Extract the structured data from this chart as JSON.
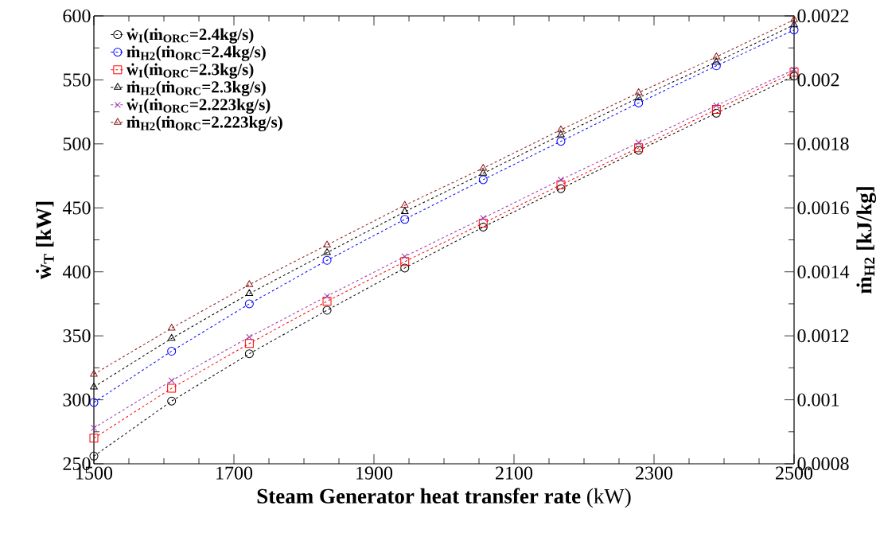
{
  "chart_data": {
    "type": "line",
    "xlabel": "**Steam Generator heat transfer rate** (kW)",
    "ylabel": "ẇ$_{T}$ [kW]",
    "y2label": "ṁ$_{H2}$ [kJ/kg]",
    "x": [
      1500,
      1611,
      1722,
      1833,
      1944,
      2056,
      2167,
      2278,
      2389,
      2500
    ],
    "xlim": [
      1500,
      2500
    ],
    "xticks": [
      1500,
      1700,
      1900,
      2100,
      2300,
      2500
    ],
    "ylim": [
      250,
      600
    ],
    "yticks": [
      250,
      300,
      350,
      400,
      450,
      500,
      550,
      600
    ],
    "y2lim": [
      0.0008,
      0.0022
    ],
    "y2ticks": [
      0.0008,
      0.001,
      0.0012,
      0.0014,
      0.0016,
      0.0018,
      0.002,
      0.0022
    ],
    "line_style": "dashed",
    "legend": "top left",
    "series": [
      {
        "name": "ẇ$_{I}$(ṁ$_{ORC}$=2.4kg/s)",
        "color": "#000000",
        "marker": "circle",
        "values": [
          256,
          299,
          336,
          370,
          403,
          435,
          465,
          495,
          524,
          553
        ]
      },
      {
        "name": "ṁ$_{H2}$(ṁ$_{ORC}$=2.4kg/s)",
        "color": "#0000ff",
        "marker": "circle",
        "axis": "y2",
        "values": [
          0.000992,
          0.001152,
          0.0013,
          0.001436,
          0.001564,
          0.001688,
          0.001808,
          0.001928,
          0.002044,
          0.002156
        ]
      },
      {
        "name": "ẇ$_{I}$(ṁ$_{ORC}$=2.3kg/s)",
        "color": "#ff0000",
        "marker": "square",
        "values": [
          270,
          309,
          344,
          377,
          408,
          438,
          468,
          497,
          527,
          556
        ]
      },
      {
        "name": "ṁ$_{H2}$(ṁ$_{ORC}$=2.3kg/s)",
        "color": "#000000",
        "marker": "triangle",
        "axis": "y2",
        "values": [
          0.00104,
          0.001192,
          0.001332,
          0.00146,
          0.001588,
          0.001708,
          0.001828,
          0.001944,
          0.002056,
          0.002172
        ]
      },
      {
        "name": "ẇ$_{I}$(ṁ$_{ORC}$=2.223kg/s)",
        "color": "#9933aa",
        "marker": "cross",
        "values": [
          278,
          315,
          349,
          381,
          412,
          442,
          472,
          501,
          530,
          558
        ]
      },
      {
        "name": "ṁ$_{H2}$(ṁ$_{ORC}$=2.223kg/s)",
        "color": "#8b1a1a",
        "marker": "triangle",
        "axis": "y2",
        "values": [
          0.00108,
          0.001224,
          0.00136,
          0.001484,
          0.001608,
          0.001724,
          0.001844,
          0.00196,
          0.002072,
          0.002188
        ]
      }
    ]
  }
}
